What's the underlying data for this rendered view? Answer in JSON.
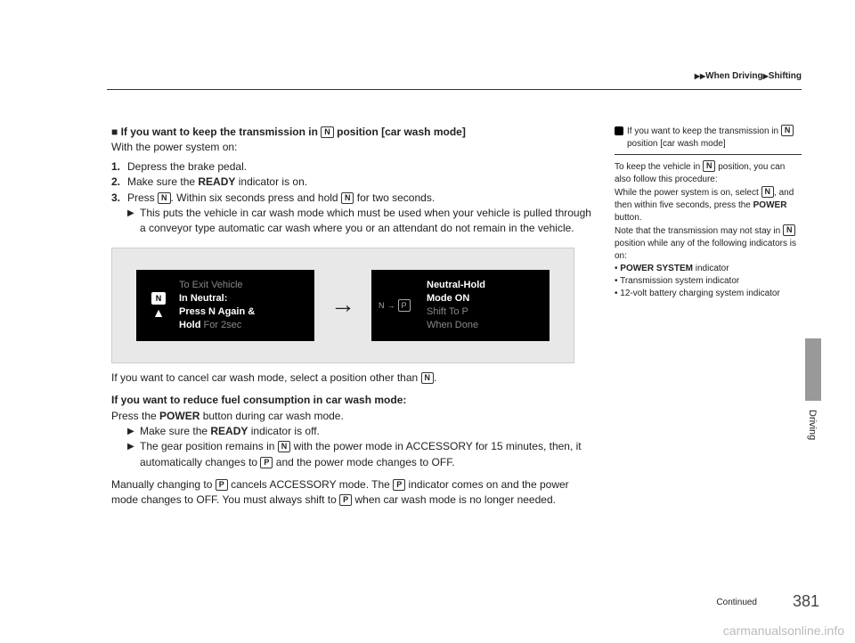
{
  "header": {
    "breadcrumb1": "When Driving",
    "breadcrumb2": "Shifting",
    "triangle": "▶"
  },
  "main": {
    "section_prefix": "■",
    "section_title_a": "If you want to keep the transmission in ",
    "section_title_b": " position [car wash mode]",
    "intro": "With the power system on:",
    "step1_num": "1.",
    "step1_txt": "Depress the brake pedal.",
    "step2_num": "2.",
    "step2_txt_a": "Make sure the ",
    "step2_txt_b": "READY",
    "step2_txt_c": " indicator is on.",
    "step3_num": "3.",
    "step3_txt_a": "Press ",
    "step3_txt_b": ". Within six seconds press and hold ",
    "step3_txt_c": " for two seconds.",
    "step3_sub_tri": "▶",
    "step3_sub_txt": "This puts the vehicle in car wash mode which must be used when your vehicle is pulled through a conveyor type automatic car wash where you or an attendant do not remain in the vehicle.",
    "gear_n": "N",
    "gear_p": "P",
    "screen1_line1a": "To Exit Vehicle",
    "screen1_line2a": "In Neutral:",
    "screen1_line3a": "Press N Again &",
    "screen1_line4a": "Hold",
    "screen1_line4b": " For 2sec",
    "arrow": "→",
    "screen2_n": "N",
    "screen2_arrow": "→",
    "screen2_p": "P",
    "screen2_line1": "Neutral-Hold",
    "screen2_line2": "Mode ON",
    "screen2_line3": "Shift To P",
    "screen2_line4": "When Done",
    "cancel_a": "If you want to cancel car wash mode, select a position other than ",
    "cancel_b": ".",
    "reduce_title": "If you want to reduce fuel consumption in car wash mode:",
    "reduce_line_a": "Press the ",
    "reduce_line_b": "POWER",
    "reduce_line_c": " button during car wash mode.",
    "reduce_sub1_a": "Make sure the ",
    "reduce_sub1_b": "READY",
    "reduce_sub1_c": " indicator is off.",
    "reduce_sub2_a": "The gear position remains in ",
    "reduce_sub2_b": " with the power mode in ACCESSORY for 15 minutes, then, it automatically changes to ",
    "reduce_sub2_c": " and the power mode changes to OFF.",
    "manual_a": "Manually changing to ",
    "manual_b": " cancels ACCESSORY mode. The ",
    "manual_c": " indicator comes on and the power mode changes to OFF. You must always shift to ",
    "manual_d": " when car wash mode is no longer needed."
  },
  "side": {
    "title_a": "If you want to keep the transmission in ",
    "title_b": " position [car wash mode]",
    "body1_a": "To keep the vehicle in ",
    "body1_b": " position, you can also follow this procedure:",
    "body2_a": "While the power system is on, select ",
    "body2_b": ", and then within five seconds, press the ",
    "body2_c": "POWER",
    "body2_d": " button.",
    "body3_a": "Note that the transmission may not stay in ",
    "body3_b": " position while any of the following indicators is on:",
    "bullet1_a": "POWER SYSTEM",
    "bullet1_b": " indicator",
    "bullet2": "Transmission system indicator",
    "bullet3": "12-volt battery charging system indicator"
  },
  "tab": {
    "label": "Driving"
  },
  "footer": {
    "continued": "Continued",
    "pagenum": "381"
  },
  "watermark": "carmanualsonline.info"
}
